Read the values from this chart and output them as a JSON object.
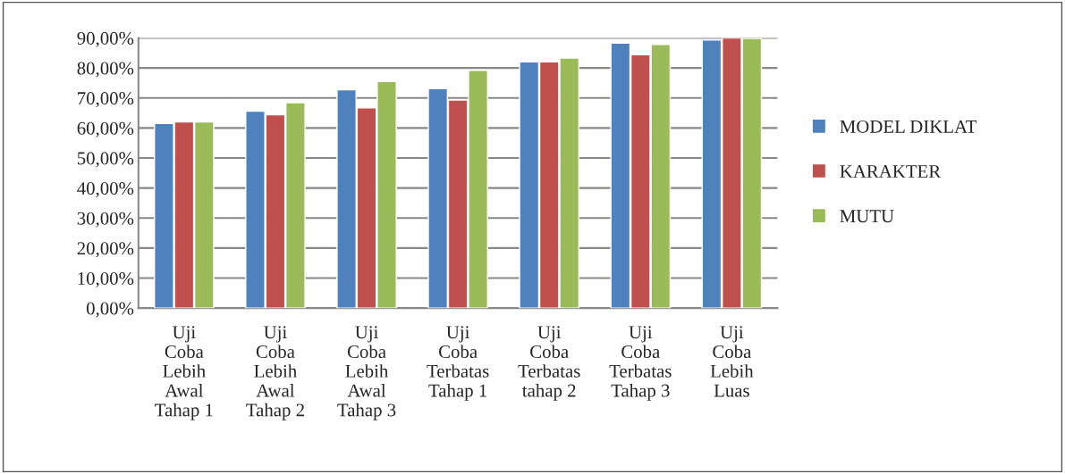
{
  "chart_data": {
    "type": "bar",
    "categories": [
      "Uji\nCoba\nLebih\nAwal\nTahap 1",
      "Uji\nCoba\nLebih\nAwal\nTahap 2",
      "Uji\nCoba\nLebih\nAwal\nTahap 3",
      "Uji\nCoba\nTerbatas\nTahap 1",
      "Uji\nCoba\nTerbatas\ntahap 2",
      "Uji\nCoba\nTerbatas\nTahap 3",
      "Uji\nCoba\nLebih\nLuas"
    ],
    "series": [
      {
        "name": "MODEL DIKLAT",
        "color": "#4f81bd",
        "values": [
          61.5,
          65.6,
          72.7,
          73.1,
          82,
          88.3,
          89.3
        ]
      },
      {
        "name": "KARAKTER",
        "color": "#c0504d",
        "values": [
          62,
          64.4,
          66.7,
          69.3,
          82,
          84.4,
          90
        ]
      },
      {
        "name": "MUTU",
        "color": "#9bbb59",
        "values": [
          62,
          68.4,
          75.5,
          79.2,
          83.3,
          87.8,
          89.8
        ]
      }
    ],
    "ylim": [
      0,
      90
    ],
    "yticks": [
      {
        "value": 0,
        "label": "0,00%"
      },
      {
        "value": 10,
        "label": "10,00%"
      },
      {
        "value": 20,
        "label": "20,00%"
      },
      {
        "value": 30,
        "label": "30,00%"
      },
      {
        "value": 40,
        "label": "40,00%"
      },
      {
        "value": 50,
        "label": "50,00%"
      },
      {
        "value": 60,
        "label": "60,00%"
      },
      {
        "value": 70,
        "label": "70,00%"
      },
      {
        "value": 80,
        "label": "80,00%"
      },
      {
        "value": 90,
        "label": "90,00%"
      }
    ],
    "grid": "y",
    "legend": "right"
  }
}
